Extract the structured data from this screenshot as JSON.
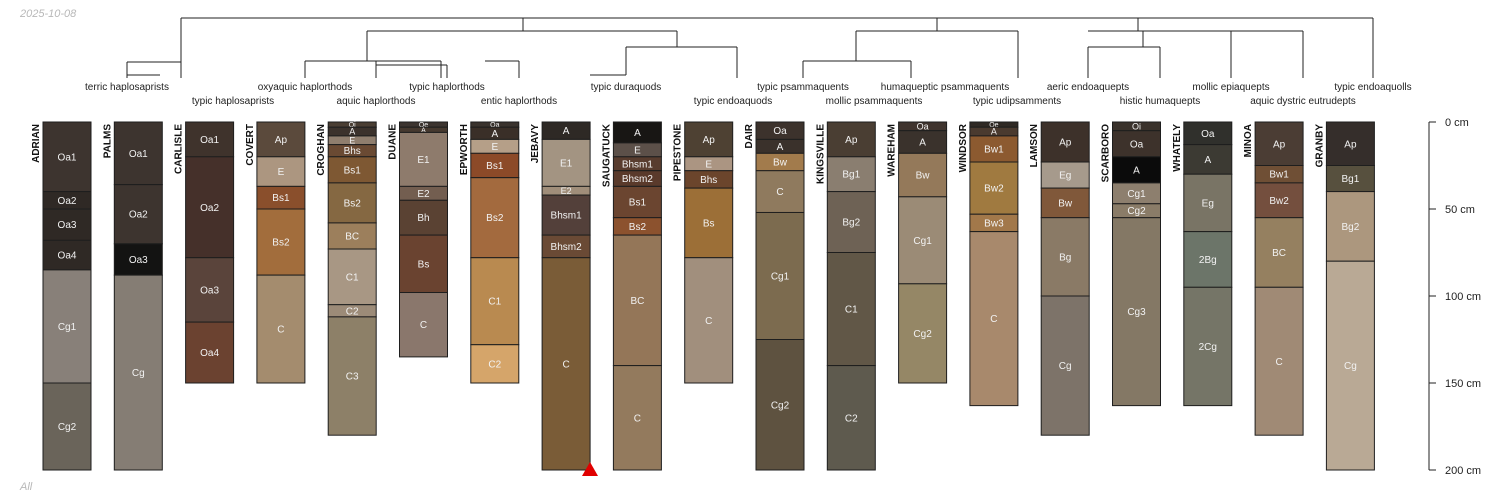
{
  "date": "2025-10-08",
  "footer": "All",
  "depth_axis": {
    "unit": "cm",
    "max_cm": 200,
    "ticks": [
      {
        "value": 0,
        "label": "0 cm"
      },
      {
        "value": 50,
        "label": "50 cm"
      },
      {
        "value": 100,
        "label": "100 cm"
      },
      {
        "value": 150,
        "label": "150 cm"
      },
      {
        "value": 200,
        "label": "200 cm"
      }
    ]
  },
  "taxa": {
    "row1": [
      "terric haplosaprists",
      "oxyaquic haplorthods",
      "typic haplorthods",
      "typic duraquods",
      "typic psammaquents",
      "humaqueptic psammaquents",
      "aeric endoaquepts",
      "mollic epiaquepts",
      "typic endoaquolls"
    ],
    "row2": [
      "typic haplosaprists",
      "aquic haplorthods",
      "entic haplorthods",
      "typic endoaquods",
      "mollic psammaquents",
      "typic udipsamments",
      "histic humaquepts",
      "aquic dystric eutrudepts"
    ]
  },
  "profiles": [
    {
      "name": "ADRIAN",
      "horizons": [
        {
          "name": "Oa1",
          "top": 0,
          "bottom": 40,
          "color": "#3d342f"
        },
        {
          "name": "Oa2",
          "top": 40,
          "bottom": 50,
          "color": "#2f2925"
        },
        {
          "name": "Oa3",
          "top": 50,
          "bottom": 68,
          "color": "#2f2925"
        },
        {
          "name": "Oa4",
          "top": 68,
          "bottom": 85,
          "color": "#2f2925"
        },
        {
          "name": "Cg1",
          "top": 85,
          "bottom": 150,
          "color": "#888079"
        },
        {
          "name": "Cg2",
          "top": 150,
          "bottom": 200,
          "color": "#6a645a"
        }
      ]
    },
    {
      "name": "PALMS",
      "horizons": [
        {
          "name": "Oa1",
          "top": 0,
          "bottom": 36,
          "color": "#3d342f"
        },
        {
          "name": "Oa2",
          "top": 36,
          "bottom": 70,
          "color": "#3d342f"
        },
        {
          "name": "Oa3",
          "top": 70,
          "bottom": 88,
          "color": "#131312"
        },
        {
          "name": "Cg",
          "top": 88,
          "bottom": 200,
          "color": "#857d74"
        }
      ]
    },
    {
      "name": "CARLISLE",
      "horizons": [
        {
          "name": "Oa1",
          "top": 0,
          "bottom": 20,
          "color": "#3f332c"
        },
        {
          "name": "Oa2",
          "top": 20,
          "bottom": 78,
          "color": "#45302a"
        },
        {
          "name": "Oa3",
          "top": 78,
          "bottom": 115,
          "color": "#5a443b"
        },
        {
          "name": "Oa4",
          "top": 115,
          "bottom": 150,
          "color": "#6b4230"
        }
      ]
    },
    {
      "name": "COVERT",
      "horizons": [
        {
          "name": "Ap",
          "top": 0,
          "bottom": 20,
          "color": "#5b4a3c"
        },
        {
          "name": "E",
          "top": 20,
          "bottom": 37,
          "color": "#ac9680"
        },
        {
          "name": "Bs1",
          "top": 37,
          "bottom": 50,
          "color": "#8a4f2c"
        },
        {
          "name": "Bs2",
          "top": 50,
          "bottom": 88,
          "color": "#a26d3c"
        },
        {
          "name": "C",
          "top": 88,
          "bottom": 150,
          "color": "#a48c6e"
        }
      ]
    },
    {
      "name": "CROGHAN",
      "horizons": [
        {
          "name": "Oi",
          "top": 0,
          "bottom": 3,
          "color": "#4a3e33"
        },
        {
          "name": "A",
          "top": 3,
          "bottom": 8,
          "color": "#3b322c"
        },
        {
          "name": "E",
          "top": 8,
          "bottom": 13,
          "color": "#8f7e6e"
        },
        {
          "name": "Bhs",
          "top": 13,
          "bottom": 20,
          "color": "#6a4a33"
        },
        {
          "name": "Bs1",
          "top": 20,
          "bottom": 35,
          "color": "#7e5833"
        },
        {
          "name": "Bs2",
          "top": 35,
          "bottom": 58,
          "color": "#856842"
        },
        {
          "name": "BC",
          "top": 58,
          "bottom": 73,
          "color": "#9c7f5c"
        },
        {
          "name": "C1",
          "top": 73,
          "bottom": 105,
          "color": "#a89784"
        },
        {
          "name": "C2",
          "top": 105,
          "bottom": 112,
          "color": "#9c8b78"
        },
        {
          "name": "C3",
          "top": 112,
          "bottom": 180,
          "color": "#8d8068"
        }
      ]
    },
    {
      "name": "DUANE",
      "horizons": [
        {
          "name": "Oe",
          "top": 0,
          "bottom": 3,
          "color": "#3d3530"
        },
        {
          "name": "A",
          "top": 3,
          "bottom": 6,
          "color": "#46392f"
        },
        {
          "name": "E1",
          "top": 6,
          "bottom": 37,
          "color": "#8e7b6c"
        },
        {
          "name": "E2",
          "top": 37,
          "bottom": 45,
          "color": "#735e50"
        },
        {
          "name": "Bh",
          "top": 45,
          "bottom": 65,
          "color": "#5a4233"
        },
        {
          "name": "Bs",
          "top": 65,
          "bottom": 98,
          "color": "#6a4330"
        },
        {
          "name": "C",
          "top": 98,
          "bottom": 135,
          "color": "#8a776c"
        }
      ]
    },
    {
      "name": "EPWORTH",
      "horizons": [
        {
          "name": "Oa",
          "top": 0,
          "bottom": 3,
          "color": "#3a332e"
        },
        {
          "name": "A",
          "top": 3,
          "bottom": 10,
          "color": "#3a2f28"
        },
        {
          "name": "E",
          "top": 10,
          "bottom": 18,
          "color": "#b59f88"
        },
        {
          "name": "Bs1",
          "top": 18,
          "bottom": 32,
          "color": "#8c4a28"
        },
        {
          "name": "Bs2",
          "top": 32,
          "bottom": 78,
          "color": "#a36a3e"
        },
        {
          "name": "C1",
          "top": 78,
          "bottom": 128,
          "color": "#b98a50"
        },
        {
          "name": "C2",
          "top": 128,
          "bottom": 150,
          "color": "#d5a56a"
        }
      ]
    },
    {
      "name": "JEBAVY",
      "horizons": [
        {
          "name": "A",
          "top": 0,
          "bottom": 10,
          "color": "#2e2925"
        },
        {
          "name": "E1",
          "top": 10,
          "bottom": 37,
          "color": "#a39482"
        },
        {
          "name": "E2",
          "top": 37,
          "bottom": 42,
          "color": "#a08e7a"
        },
        {
          "name": "Bhsm1",
          "top": 42,
          "bottom": 65,
          "color": "#53403a"
        },
        {
          "name": "Bhsm2",
          "top": 65,
          "bottom": 78,
          "color": "#6a4a35"
        },
        {
          "name": "C",
          "top": 78,
          "bottom": 200,
          "color": "#7a5c37"
        }
      ]
    },
    {
      "name": "SAUGATUCK",
      "horizons": [
        {
          "name": "A",
          "top": 0,
          "bottom": 12,
          "color": "#181614"
        },
        {
          "name": "E",
          "top": 12,
          "bottom": 20,
          "color": "#5c5049"
        },
        {
          "name": "Bhsm1",
          "top": 20,
          "bottom": 28,
          "color": "#583c2e"
        },
        {
          "name": "Bhsm2",
          "top": 28,
          "bottom": 37,
          "color": "#5a3a2b"
        },
        {
          "name": "Bs1",
          "top": 37,
          "bottom": 55,
          "color": "#6b4530"
        },
        {
          "name": "Bs2",
          "top": 55,
          "bottom": 65,
          "color": "#8c522e"
        },
        {
          "name": "BC",
          "top": 65,
          "bottom": 140,
          "color": "#947658"
        },
        {
          "name": "C",
          "top": 140,
          "bottom": 200,
          "color": "#937a5d"
        }
      ]
    },
    {
      "name": "PIPESTONE",
      "horizons": [
        {
          "name": "Ap",
          "top": 0,
          "bottom": 20,
          "color": "#4e4133"
        },
        {
          "name": "E",
          "top": 20,
          "bottom": 28,
          "color": "#ab9582"
        },
        {
          "name": "Bhs",
          "top": 28,
          "bottom": 38,
          "color": "#6b452c"
        },
        {
          "name": "Bs",
          "top": 38,
          "bottom": 78,
          "color": "#9c6f37"
        },
        {
          "name": "C",
          "top": 78,
          "bottom": 150,
          "color": "#a18f7d"
        }
      ]
    },
    {
      "name": "DAIR",
      "horizons": [
        {
          "name": "Oa",
          "top": 0,
          "bottom": 10,
          "color": "#3c322c"
        },
        {
          "name": "A",
          "top": 10,
          "bottom": 18,
          "color": "#3a312b"
        },
        {
          "name": "Bw",
          "top": 18,
          "bottom": 28,
          "color": "#a27b4c"
        },
        {
          "name": "C",
          "top": 28,
          "bottom": 52,
          "color": "#8f7a5e"
        },
        {
          "name": "Cg1",
          "top": 52,
          "bottom": 125,
          "color": "#7c6b4f"
        },
        {
          "name": "Cg2",
          "top": 125,
          "bottom": 200,
          "color": "#5e5240"
        }
      ]
    },
    {
      "name": "KINGSVILLE",
      "horizons": [
        {
          "name": "Ap",
          "top": 0,
          "bottom": 20,
          "color": "#4a3e33"
        },
        {
          "name": "Bg1",
          "top": 20,
          "bottom": 40,
          "color": "#8a7e70"
        },
        {
          "name": "Bg2",
          "top": 40,
          "bottom": 75,
          "color": "#6e6255"
        },
        {
          "name": "C1",
          "top": 75,
          "bottom": 140,
          "color": "#615747"
        },
        {
          "name": "C2",
          "top": 140,
          "bottom": 200,
          "color": "#5e5a4e"
        }
      ]
    },
    {
      "name": "WAREHAM",
      "horizons": [
        {
          "name": "Oa",
          "top": 0,
          "bottom": 5,
          "color": "#3f342e"
        },
        {
          "name": "A",
          "top": 5,
          "bottom": 18,
          "color": "#3a322c"
        },
        {
          "name": "Bw",
          "top": 18,
          "bottom": 43,
          "color": "#94795a"
        },
        {
          "name": "Cg1",
          "top": 43,
          "bottom": 93,
          "color": "#9b8b76"
        },
        {
          "name": "Cg2",
          "top": 93,
          "bottom": 150,
          "color": "#958766"
        }
      ]
    },
    {
      "name": "WINDSOR",
      "horizons": [
        {
          "name": "Oe",
          "top": 0,
          "bottom": 3,
          "color": "#2f2924"
        },
        {
          "name": "A",
          "top": 3,
          "bottom": 8,
          "color": "#4a3a2f"
        },
        {
          "name": "Bw1",
          "top": 8,
          "bottom": 23,
          "color": "#8c5a30"
        },
        {
          "name": "Bw2",
          "top": 23,
          "bottom": 53,
          "color": "#a07a40"
        },
        {
          "name": "Bw3",
          "top": 53,
          "bottom": 63,
          "color": "#a2784a"
        },
        {
          "name": "C",
          "top": 63,
          "bottom": 163,
          "color": "#a8896c"
        }
      ]
    },
    {
      "name": "LAMSON",
      "horizons": [
        {
          "name": "Ap",
          "top": 0,
          "bottom": 23,
          "color": "#3d312a"
        },
        {
          "name": "Eg",
          "top": 23,
          "bottom": 38,
          "color": "#a69a8c"
        },
        {
          "name": "Bw",
          "top": 38,
          "bottom": 55,
          "color": "#80583a"
        },
        {
          "name": "Bg",
          "top": 55,
          "bottom": 100,
          "color": "#8a7a66"
        },
        {
          "name": "Cg",
          "top": 100,
          "bottom": 180,
          "color": "#7d7369"
        }
      ]
    },
    {
      "name": "SCARBORO",
      "horizons": [
        {
          "name": "Oi",
          "top": 0,
          "bottom": 5,
          "color": "#3a322c"
        },
        {
          "name": "Oa",
          "top": 5,
          "bottom": 20,
          "color": "#3d322b"
        },
        {
          "name": "A",
          "top": 20,
          "bottom": 35,
          "color": "#0b0b0b"
        },
        {
          "name": "Cg1",
          "top": 35,
          "bottom": 47,
          "color": "#8d7f6e"
        },
        {
          "name": "Cg2",
          "top": 47,
          "bottom": 55,
          "color": "#8a7c68"
        },
        {
          "name": "Cg3",
          "top": 55,
          "bottom": 163,
          "color": "#847865"
        }
      ]
    },
    {
      "name": "WHATELY",
      "horizons": [
        {
          "name": "Oa",
          "top": 0,
          "bottom": 13,
          "color": "#30302c"
        },
        {
          "name": "A",
          "top": 13,
          "bottom": 30,
          "color": "#3c3a33"
        },
        {
          "name": "Eg",
          "top": 30,
          "bottom": 63,
          "color": "#797465"
        },
        {
          "name": "2Bg",
          "top": 63,
          "bottom": 95,
          "color": "#6c7569"
        },
        {
          "name": "2Cg",
          "top": 95,
          "bottom": 163,
          "color": "#757567"
        }
      ]
    },
    {
      "name": "MINOA",
      "horizons": [
        {
          "name": "Ap",
          "top": 0,
          "bottom": 25,
          "color": "#4b3d34"
        },
        {
          "name": "Bw1",
          "top": 25,
          "bottom": 35,
          "color": "#6f4f35"
        },
        {
          "name": "Bw2",
          "top": 35,
          "bottom": 55,
          "color": "#744f3e"
        },
        {
          "name": "BC",
          "top": 55,
          "bottom": 95,
          "color": "#958060"
        },
        {
          "name": "C",
          "top": 95,
          "bottom": 180,
          "color": "#a08a75"
        }
      ]
    },
    {
      "name": "GRANBY",
      "horizons": [
        {
          "name": "Ap",
          "top": 0,
          "bottom": 25,
          "color": "#352e2b"
        },
        {
          "name": "Bg1",
          "top": 25,
          "bottom": 40,
          "color": "#57503e"
        },
        {
          "name": "Bg2",
          "top": 40,
          "bottom": 80,
          "color": "#ac977e"
        },
        {
          "name": "Cg",
          "top": 80,
          "bottom": 200,
          "color": "#b9a995"
        }
      ]
    }
  ]
}
